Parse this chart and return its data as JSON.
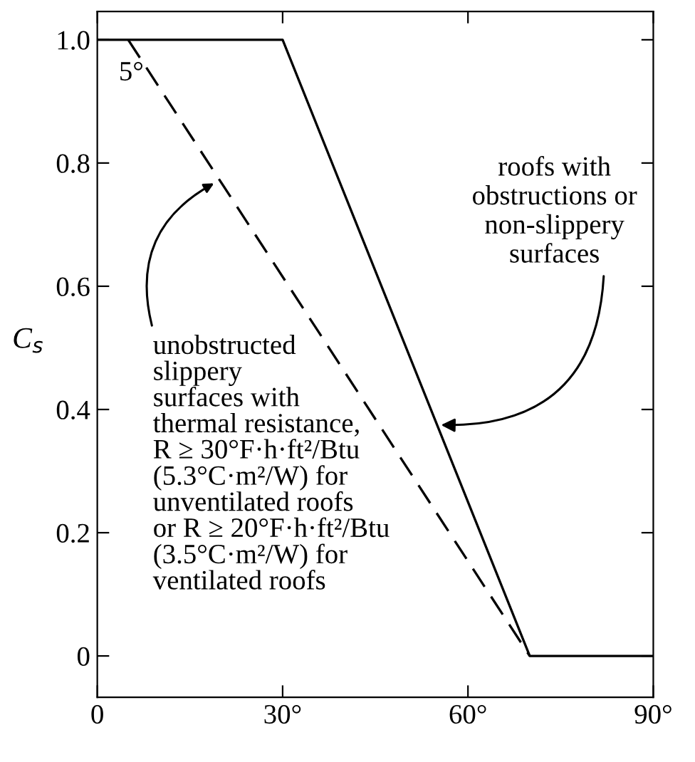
{
  "chart_data": {
    "type": "line",
    "ylabel": "C$_{s}$",
    "series": [
      {
        "color": "#000000",
        "line_style": "solid",
        "x": [
          0,
          30,
          70,
          90
        ],
        "values": [
          1.0,
          1.0,
          0.0,
          0.0
        ]
      },
      {
        "color": "#000000",
        "line_style": "dashed",
        "x": [
          5,
          70
        ],
        "values": [
          1.0,
          0.0
        ]
      }
    ],
    "xlim": [
      0,
      90
    ],
    "ylim": [
      -0.067,
      1.046
    ],
    "xticks": [
      {
        "value": 0,
        "label": "0"
      },
      {
        "value": 30,
        "label": "30°"
      },
      {
        "value": 60,
        "label": "60°"
      },
      {
        "value": 90,
        "label": "90°"
      }
    ],
    "yticks": [
      {
        "value": 0,
        "label": "0"
      },
      {
        "value": 0.2,
        "label": "0.2"
      },
      {
        "value": 0.4,
        "label": "0.4"
      },
      {
        "value": 0.6,
        "label": "0.6"
      },
      {
        "value": 0.8,
        "label": "0.8"
      },
      {
        "value": 1.0,
        "label": "1.0"
      }
    ],
    "grid": false,
    "legend": false,
    "marker": "none",
    "annotations": [
      {
        "text": "5°",
        "x": 5,
        "y": 1.0
      },
      {
        "text": "roofs with\nobstructions or\nnon-slippery\nsurfaces",
        "x": 55,
        "y": 0.375
      },
      "unobstructed\nslippery\nsurfaces with\nthermal resistance,\nR ≥ 30°F·h·ft²/Btu\n(5.3°C·m²/W) for\nunventilated roofs\nor R ≥ 20°F·h·ft²/Btu\n(3.5°C·m²/W) for\nventilated roofs"
    ]
  }
}
